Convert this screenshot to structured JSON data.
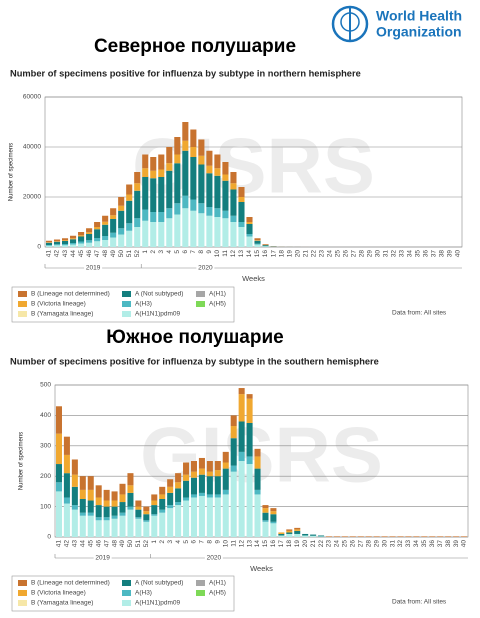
{
  "logo": {
    "line1": "World Health",
    "line2": "Organization"
  },
  "watermark": "GISRS",
  "chart_data": [
    {
      "type": "bar",
      "stacked": true,
      "heading": "Северное полушарие",
      "title": "Number of specimens positive for influenza by subtype in northern hemisphere",
      "ylabel": "Number of specimens",
      "xlabel": "Weeks",
      "years": [
        "2019",
        "2020"
      ],
      "source": "Data from: All sites",
      "ylim": [
        0,
        60000
      ],
      "yticks": [
        0,
        20000,
        40000,
        60000
      ],
      "grid": true,
      "categories": [
        "41",
        "42",
        "43",
        "44",
        "45",
        "46",
        "47",
        "48",
        "49",
        "50",
        "51",
        "52",
        "1",
        "2",
        "3",
        "4",
        "5",
        "6",
        "7",
        "8",
        "9",
        "10",
        "11",
        "12",
        "13",
        "14",
        "15",
        "16",
        "17",
        "18",
        "19",
        "20",
        "21",
        "22",
        "23",
        "24",
        "25",
        "26",
        "27",
        "28",
        "29",
        "30",
        "31",
        "32",
        "33",
        "34",
        "35",
        "36",
        "37",
        "38",
        "39",
        "40"
      ],
      "series": [
        {
          "name": "B (Lineage not determined)",
          "color": "#c8732f",
          "values": [
            600,
            700,
            800,
            1000,
            1300,
            1600,
            2000,
            2400,
            2800,
            3500,
            4000,
            4500,
            5500,
            5500,
            6000,
            6500,
            7000,
            7500,
            7000,
            6500,
            6000,
            5500,
            5000,
            4500,
            4000,
            2000,
            800,
            300,
            100,
            50,
            30,
            20,
            10,
            0,
            0,
            0,
            0,
            0,
            0,
            0,
            0,
            0,
            0,
            0,
            0,
            0,
            0,
            0,
            0,
            0,
            0,
            0
          ]
        },
        {
          "name": "B (Victoria lineage)",
          "color": "#f0a830",
          "values": [
            200,
            200,
            300,
            400,
            500,
            700,
            900,
            1200,
            1500,
            2000,
            2500,
            3000,
            3500,
            3000,
            3000,
            3000,
            3500,
            4000,
            4000,
            3500,
            3000,
            3000,
            2500,
            2500,
            2000,
            800,
            200,
            50,
            20,
            0,
            0,
            0,
            0,
            0,
            0,
            0,
            0,
            0,
            0,
            0,
            0,
            0,
            0,
            0,
            0,
            0,
            0,
            0,
            0,
            0,
            0,
            0
          ]
        },
        {
          "name": "B (Yamagata lineage)",
          "color": "#f6e7a8",
          "values": [
            0,
            0,
            0,
            0,
            0,
            0,
            0,
            0,
            0,
            0,
            0,
            0,
            0,
            0,
            0,
            0,
            0,
            0,
            0,
            0,
            0,
            0,
            0,
            0,
            0,
            0,
            0,
            0,
            0,
            0,
            0,
            0,
            0,
            0,
            0,
            0,
            0,
            0,
            0,
            0,
            0,
            0,
            0,
            0,
            0,
            0,
            0,
            0,
            0,
            0,
            0,
            0
          ]
        },
        {
          "name": "A (Not subtyped)",
          "color": "#137e7e",
          "values": [
            900,
            1000,
            1200,
            1500,
            2000,
            2500,
            3500,
            4500,
            5500,
            7000,
            9000,
            11000,
            13000,
            13500,
            14000,
            15000,
            16000,
            18000,
            17000,
            15500,
            13500,
            13000,
            12000,
            10500,
            8000,
            4000,
            1200,
            400,
            100,
            50,
            30,
            20,
            0,
            0,
            0,
            0,
            0,
            0,
            0,
            0,
            0,
            0,
            0,
            0,
            0,
            0,
            0,
            0,
            0,
            0,
            0,
            0
          ]
        },
        {
          "name": "A(H3)",
          "color": "#4db8c2",
          "values": [
            300,
            400,
            500,
            600,
            800,
            1000,
            1300,
            1600,
            1900,
            2500,
            3000,
            3500,
            4500,
            4000,
            4000,
            4000,
            4500,
            5000,
            4500,
            4000,
            3500,
            3500,
            3000,
            2500,
            2000,
            1000,
            300,
            100,
            30,
            0,
            0,
            0,
            0,
            0,
            0,
            0,
            0,
            0,
            0,
            0,
            0,
            0,
            0,
            0,
            0,
            0,
            0,
            0,
            0,
            0,
            0,
            0
          ]
        },
        {
          "name": "A(H1N1)pdm09",
          "color": "#b2ede7",
          "values": [
            500,
            700,
            700,
            1000,
            1400,
            1700,
            2300,
            2800,
            3800,
            5000,
            6500,
            8000,
            10500,
            10000,
            10000,
            11500,
            13000,
            15500,
            14500,
            13500,
            12500,
            12000,
            11500,
            10000,
            8000,
            4200,
            1000,
            250,
            80,
            20,
            10,
            0,
            0,
            0,
            0,
            0,
            0,
            0,
            0,
            0,
            0,
            0,
            0,
            0,
            0,
            0,
            0,
            0,
            0,
            0,
            0,
            0
          ]
        },
        {
          "name": "A(H1)",
          "color": "#a6a6a6",
          "values": [
            0,
            0,
            0,
            0,
            0,
            0,
            0,
            0,
            0,
            0,
            0,
            0,
            0,
            0,
            0,
            0,
            0,
            0,
            0,
            0,
            0,
            0,
            0,
            0,
            0,
            0,
            0,
            0,
            0,
            0,
            0,
            0,
            0,
            0,
            0,
            0,
            0,
            0,
            0,
            0,
            0,
            0,
            0,
            0,
            0,
            0,
            0,
            0,
            0,
            0,
            0,
            0
          ]
        },
        {
          "name": "A(H5)",
          "color": "#7ed957",
          "values": [
            0,
            0,
            0,
            0,
            0,
            0,
            0,
            0,
            0,
            0,
            0,
            0,
            0,
            0,
            0,
            0,
            0,
            0,
            0,
            0,
            0,
            0,
            0,
            0,
            0,
            0,
            0,
            0,
            0,
            0,
            0,
            0,
            0,
            0,
            0,
            0,
            0,
            0,
            0,
            0,
            0,
            0,
            0,
            0,
            0,
            0,
            0,
            0,
            0,
            0,
            0,
            0
          ]
        }
      ]
    },
    {
      "type": "bar",
      "stacked": true,
      "heading": "Южное полушарие",
      "title": "Number of specimens positive for influenza by subtype in the southern hemisphere",
      "ylabel": "Number of specimens",
      "xlabel": "Weeks",
      "years": [
        "2019",
        "2020"
      ],
      "source": "Data from: All sites",
      "ylim": [
        0,
        500
      ],
      "yticks": [
        0,
        100,
        200,
        300,
        400,
        500
      ],
      "grid": true,
      "categories": [
        "41",
        "42",
        "43",
        "44",
        "45",
        "46",
        "47",
        "48",
        "49",
        "50",
        "51",
        "52",
        "1",
        "2",
        "3",
        "4",
        "5",
        "6",
        "7",
        "8",
        "9",
        "10",
        "11",
        "12",
        "13",
        "14",
        "15",
        "16",
        "17",
        "18",
        "19",
        "20",
        "21",
        "22",
        "23",
        "24",
        "25",
        "26",
        "27",
        "28",
        "29",
        "30",
        "31",
        "32",
        "33",
        "34",
        "35",
        "36",
        "37",
        "38",
        "39",
        "40"
      ],
      "series": [
        {
          "name": "B (Lineage not determined)",
          "color": "#c8732f",
          "values": [
            90,
            60,
            50,
            45,
            45,
            40,
            35,
            30,
            35,
            40,
            20,
            15,
            20,
            25,
            25,
            30,
            40,
            35,
            35,
            35,
            30,
            35,
            35,
            20,
            15,
            25,
            10,
            10,
            0,
            5,
            5,
            0,
            0,
            0,
            2,
            2,
            2,
            2,
            2,
            2,
            2,
            2,
            2,
            2,
            2,
            2,
            2,
            2,
            2,
            2,
            2,
            2
          ]
        },
        {
          "name": "B (Victoria lineage)",
          "color": "#f0a830",
          "values": [
            100,
            60,
            40,
            30,
            35,
            25,
            20,
            20,
            25,
            25,
            10,
            10,
            15,
            15,
            20,
            20,
            20,
            20,
            20,
            15,
            20,
            20,
            40,
            90,
            80,
            40,
            15,
            10,
            5,
            5,
            5,
            0,
            0,
            0,
            0,
            0,
            0,
            0,
            0,
            0,
            0,
            0,
            0,
            0,
            0,
            0,
            0,
            0,
            0,
            0,
            0,
            0
          ]
        },
        {
          "name": "B (Yamagata lineage)",
          "color": "#f6e7a8",
          "values": [
            0,
            0,
            0,
            0,
            0,
            0,
            0,
            0,
            0,
            0,
            0,
            0,
            0,
            0,
            0,
            0,
            0,
            0,
            0,
            0,
            0,
            0,
            0,
            0,
            0,
            0,
            0,
            0,
            0,
            0,
            0,
            0,
            0,
            0,
            0,
            0,
            0,
            0,
            0,
            0,
            0,
            0,
            0,
            0,
            0,
            0,
            0,
            0,
            0,
            0,
            0,
            0
          ]
        },
        {
          "name": "A (Not subtyped)",
          "color": "#137e7e",
          "values": [
            60,
            80,
            60,
            45,
            40,
            40,
            35,
            30,
            35,
            45,
            25,
            20,
            30,
            35,
            40,
            45,
            55,
            55,
            60,
            60,
            60,
            70,
            90,
            100,
            110,
            70,
            25,
            25,
            5,
            5,
            10,
            5,
            4,
            3,
            0,
            0,
            0,
            0,
            0,
            0,
            0,
            0,
            0,
            0,
            0,
            0,
            0,
            0,
            0,
            0,
            0,
            0
          ]
        },
        {
          "name": "A(H3)",
          "color": "#4db8c2",
          "values": [
            30,
            20,
            15,
            10,
            10,
            10,
            10,
            10,
            10,
            10,
            5,
            5,
            5,
            10,
            10,
            10,
            10,
            10,
            10,
            10,
            10,
            15,
            20,
            30,
            25,
            15,
            5,
            5,
            0,
            0,
            0,
            0,
            0,
            0,
            0,
            0,
            0,
            0,
            0,
            0,
            0,
            0,
            0,
            0,
            0,
            0,
            0,
            0,
            0,
            0,
            0,
            0
          ]
        },
        {
          "name": "A(H1N1)pdm09",
          "color": "#b2ede7",
          "values": [
            150,
            110,
            90,
            70,
            70,
            55,
            55,
            60,
            70,
            90,
            60,
            50,
            70,
            80,
            95,
            105,
            120,
            130,
            135,
            130,
            130,
            140,
            215,
            250,
            240,
            140,
            50,
            45,
            5,
            10,
            10,
            5,
            4,
            2,
            0,
            0,
            0,
            0,
            0,
            0,
            0,
            0,
            0,
            0,
            0,
            0,
            0,
            0,
            0,
            0,
            0,
            0
          ]
        },
        {
          "name": "A(H1)",
          "color": "#a6a6a6",
          "values": [
            0,
            0,
            0,
            0,
            0,
            0,
            0,
            0,
            0,
            0,
            0,
            0,
            0,
            0,
            0,
            0,
            0,
            0,
            0,
            0,
            0,
            0,
            0,
            0,
            0,
            0,
            0,
            0,
            0,
            0,
            0,
            0,
            0,
            0,
            0,
            0,
            0,
            0,
            0,
            0,
            0,
            0,
            0,
            0,
            0,
            0,
            0,
            0,
            0,
            0,
            0,
            0
          ]
        },
        {
          "name": "A(H5)",
          "color": "#7ed957",
          "values": [
            0,
            0,
            0,
            0,
            0,
            0,
            0,
            0,
            0,
            0,
            0,
            0,
            0,
            0,
            0,
            0,
            0,
            0,
            0,
            0,
            0,
            0,
            0,
            0,
            0,
            0,
            0,
            0,
            0,
            0,
            0,
            0,
            0,
            0,
            0,
            0,
            0,
            0,
            0,
            0,
            0,
            0,
            0,
            0,
            0,
            0,
            0,
            0,
            0,
            0,
            0,
            0
          ]
        }
      ]
    }
  ]
}
